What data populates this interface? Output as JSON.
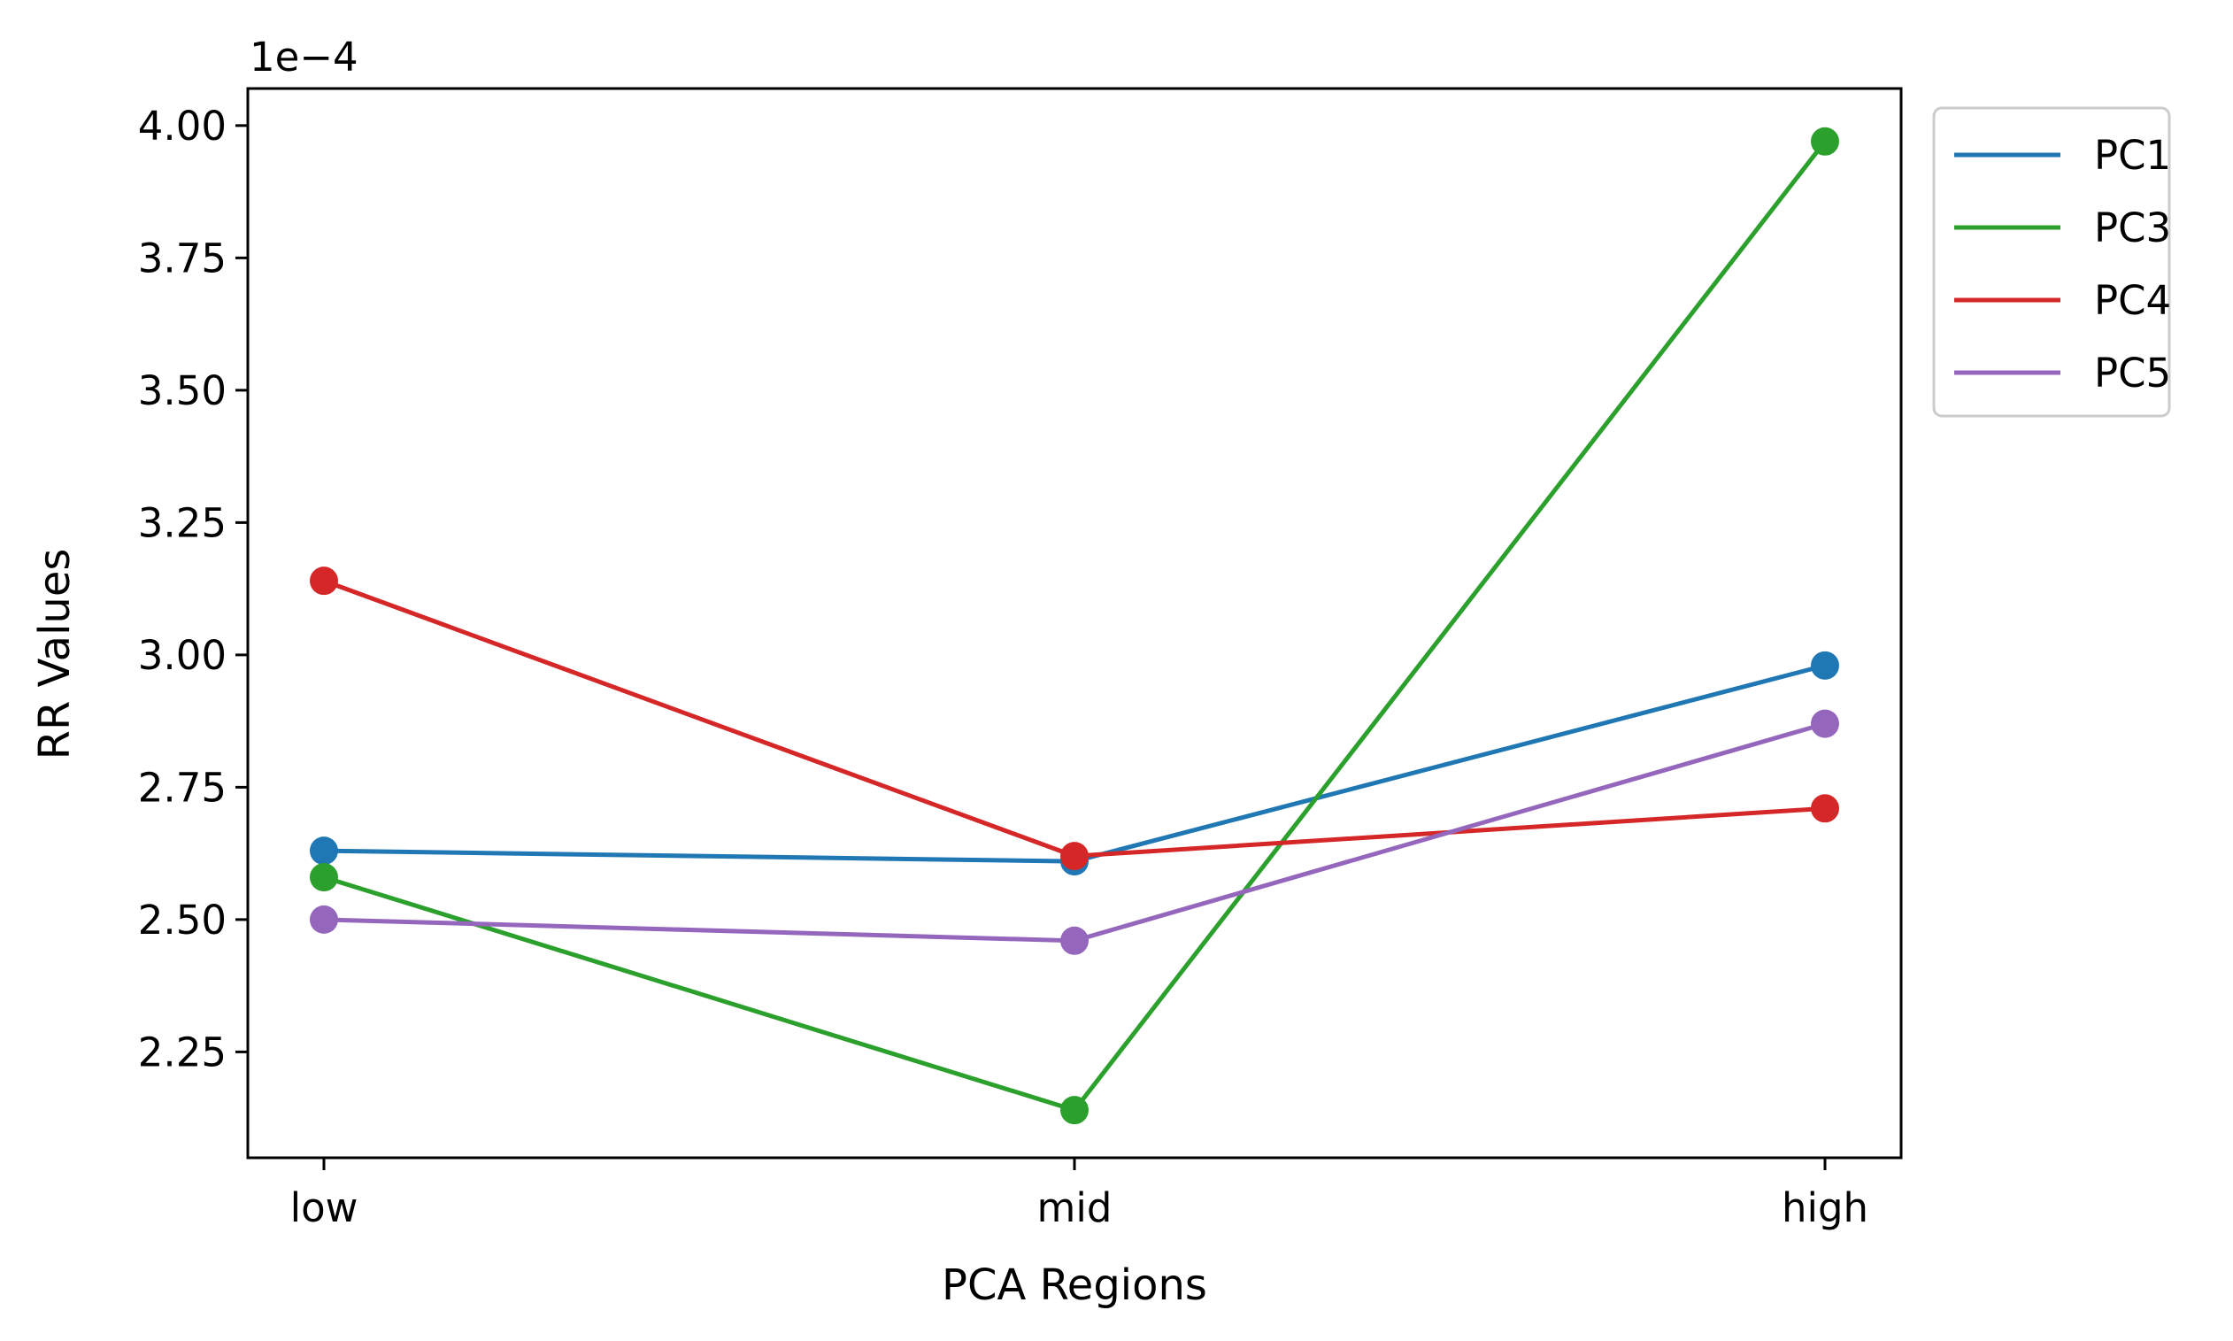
{
  "chart_data": {
    "type": "line",
    "xlabel": "PCA Regions",
    "ylabel": "RR Values",
    "y_offset_label": "1e−4",
    "categories": [
      "low",
      "mid",
      "high"
    ],
    "ylim": [
      2.05,
      4.07
    ],
    "yticks": [
      "2.25",
      "2.50",
      "2.75",
      "3.00",
      "3.25",
      "3.50",
      "3.75",
      "4.00"
    ],
    "grid": false,
    "legend_position": "outside-top-right",
    "series": [
      {
        "name": "PC1",
        "color": "#1f77b4",
        "values": [
          2.63,
          2.61,
          2.98
        ]
      },
      {
        "name": "PC3",
        "color": "#2ca02c",
        "values": [
          2.58,
          2.14,
          3.97
        ]
      },
      {
        "name": "PC4",
        "color": "#d62728",
        "values": [
          3.14,
          2.62,
          2.71
        ]
      },
      {
        "name": "PC5",
        "color": "#9467bd",
        "values": [
          2.5,
          2.46,
          2.87
        ]
      }
    ]
  }
}
